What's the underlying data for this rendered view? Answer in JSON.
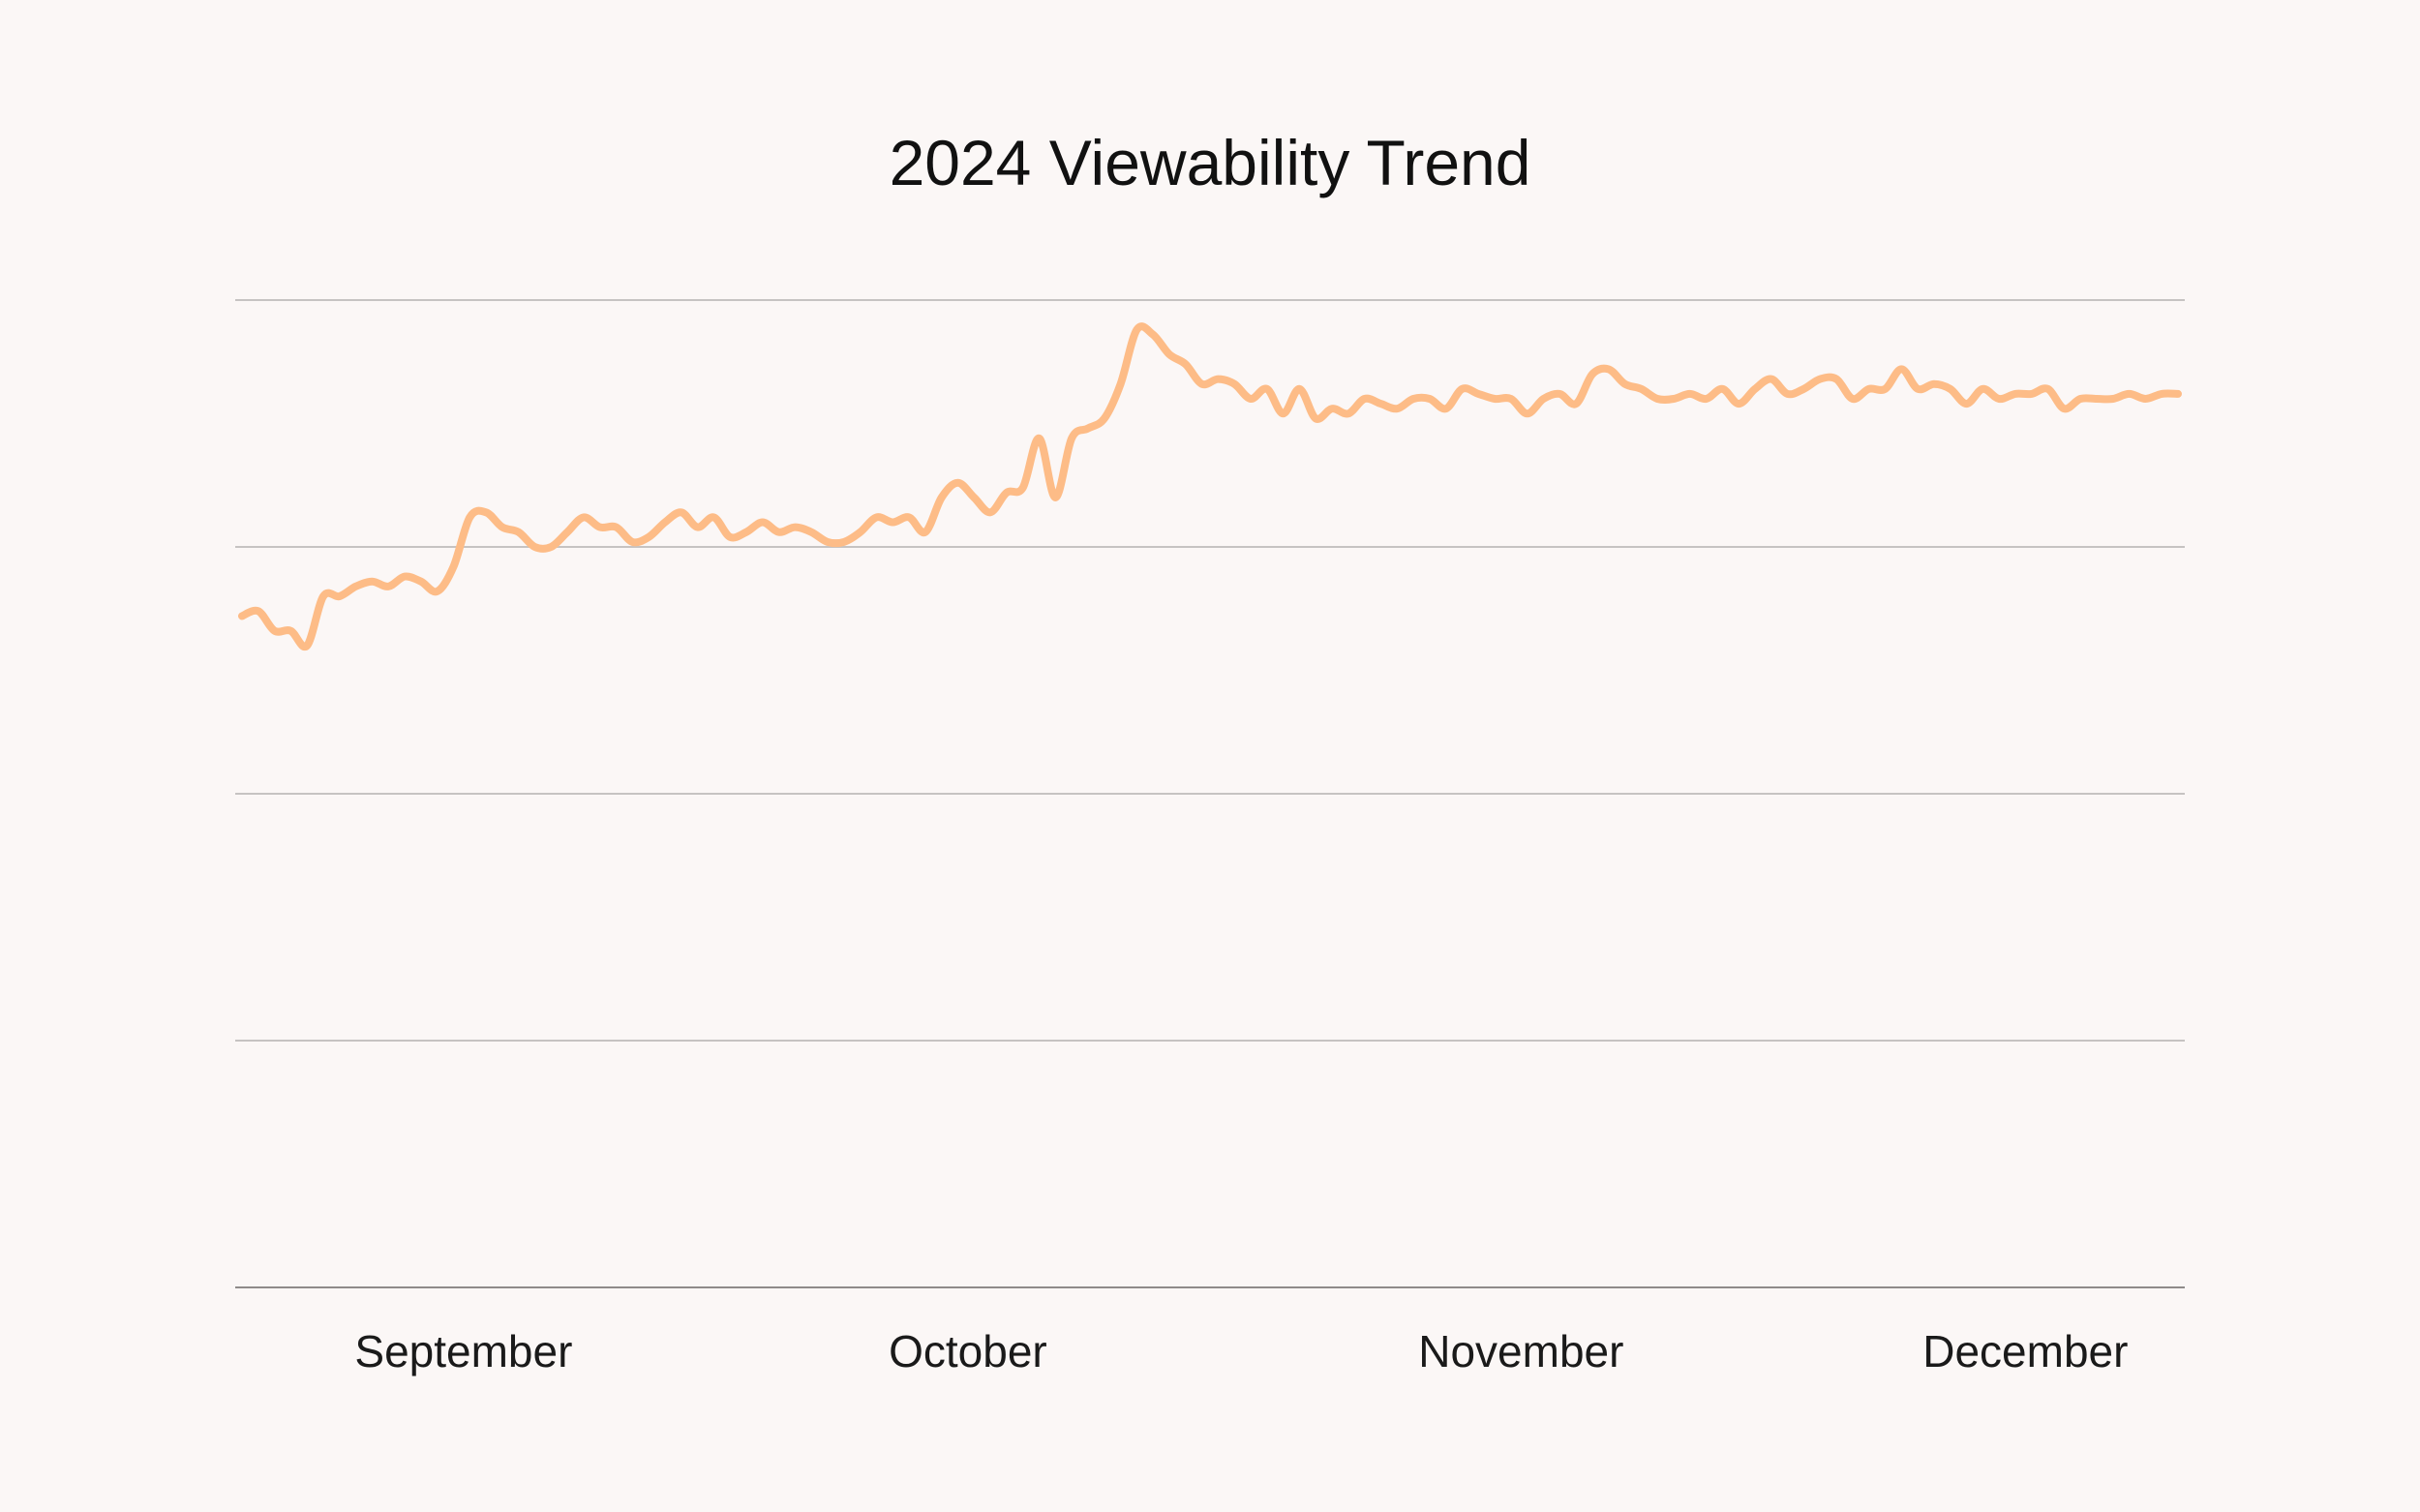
{
  "chart_data": {
    "type": "line",
    "title": "2024 Viewability Trend",
    "xlabel": "",
    "ylabel": "",
    "grid": true,
    "legend": "none",
    "xlim": [
      0,
      119
    ],
    "ylim": [
      0,
      100
    ],
    "y_gridlines": [
      0,
      25,
      50,
      75,
      100
    ],
    "x_ticks": [
      {
        "label": "September",
        "x": 16
      },
      {
        "label": "October",
        "x": 47
      },
      {
        "label": "November",
        "x": 81
      },
      {
        "label": "December",
        "x": 112
      }
    ],
    "series": [
      {
        "name": "Viewability",
        "color": "#fdbc87",
        "x": [
          0,
          1,
          2,
          3,
          4,
          5,
          6,
          7,
          8,
          9,
          10,
          11,
          12,
          13,
          14,
          15,
          16,
          17,
          18,
          19,
          20,
          21,
          22,
          23,
          24,
          25,
          26,
          27,
          28,
          29,
          30,
          31,
          32,
          33,
          34,
          35,
          36,
          37,
          38,
          39,
          40,
          41,
          42,
          43,
          44,
          45,
          46,
          47,
          48,
          49,
          50,
          51,
          52,
          53,
          54,
          55,
          56,
          57,
          58,
          59,
          60,
          61,
          62,
          63,
          64,
          65,
          66,
          67,
          68,
          69,
          70,
          71,
          72,
          73,
          74,
          75,
          76,
          77,
          78,
          79,
          80,
          81,
          82,
          83,
          84,
          85,
          86,
          87,
          88,
          89,
          90,
          91,
          92,
          93,
          94,
          95,
          96,
          97,
          98,
          99,
          100,
          101,
          102,
          103,
          104,
          105,
          106,
          107,
          108,
          109,
          110,
          111,
          112,
          113,
          114,
          115,
          116,
          117,
          118,
          119
        ],
        "values": [
          68.0,
          68.5,
          66.5,
          66.5,
          65.0,
          70.0,
          70.0,
          71.0,
          71.5,
          71.0,
          72.0,
          71.5,
          70.5,
          73.0,
          78.0,
          78.5,
          77.0,
          76.5,
          75.0,
          75.0,
          76.5,
          78.0,
          77.0,
          77.0,
          75.5,
          76.0,
          77.5,
          78.5,
          77.0,
          78.0,
          76.0,
          76.5,
          77.5,
          76.5,
          77.0,
          76.5,
          75.5,
          75.5,
          76.5,
          78.0,
          77.5,
          78.0,
          76.5,
          80.0,
          81.5,
          80.0,
          78.5,
          80.5,
          81.0,
          86.0,
          80.0,
          86.0,
          87.0,
          88.0,
          91.5,
          97.0,
          96.5,
          94.5,
          93.5,
          91.5,
          92.0,
          91.5,
          90.0,
          91.0,
          88.5,
          91.0,
          88.0,
          89.0,
          88.5,
          90.0,
          89.5,
          89.0,
          90.0,
          90.0,
          89.0,
          91.0,
          90.5,
          90.0,
          90.0,
          88.5,
          90.0,
          90.5,
          89.5,
          92.5,
          93.0,
          91.5,
          91.0,
          90.0,
          90.0,
          90.5,
          90.0,
          91.0,
          89.5,
          91.0,
          92.0,
          90.5,
          91.0,
          92.0,
          92.0,
          90.0,
          91.0,
          91.0,
          93.0,
          91.0,
          91.5,
          91.0,
          89.5,
          91.0,
          90.0,
          90.5,
          90.5,
          91.0,
          89.0,
          90.0,
          90.0,
          90.0,
          90.5,
          90.0,
          90.5,
          90.5
        ]
      }
    ]
  }
}
